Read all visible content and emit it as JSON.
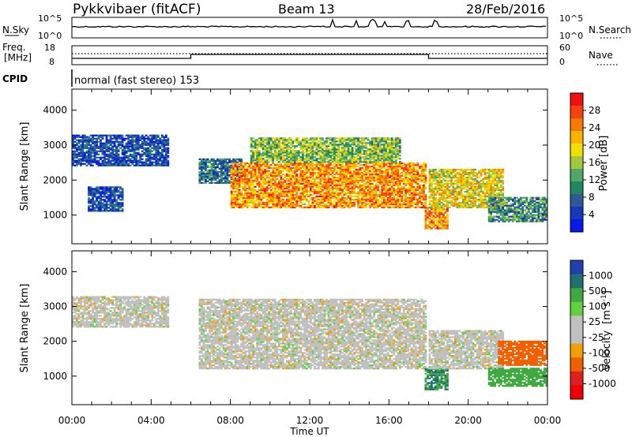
{
  "header": {
    "station": "Pykkvibaer (fitACF)",
    "beam": "Beam 13",
    "date": "28/Feb/2016"
  },
  "nsky_panel": {
    "left_label": "N.Sky",
    "left_ticks": [
      "10^5",
      "10^0"
    ],
    "right_label": "N.Search",
    "right_ticks": [
      "10^5",
      "10^0"
    ]
  },
  "freq_panel": {
    "label_line1": "Freq.",
    "label_line2": "[MHz]",
    "left_ticks": [
      "18",
      "8"
    ],
    "right_label": "Nave",
    "right_ticks": [
      "60",
      "0"
    ]
  },
  "cpid": {
    "label": "CPID",
    "mode_text": "normal (fast stereo) 153"
  },
  "time_axis": {
    "ticks": [
      "00:00",
      "04:00",
      "08:00",
      "12:00",
      "16:00",
      "20:00",
      "00:00"
    ],
    "label": "Time UT"
  },
  "power_colorbar": {
    "label": "Power [dB]",
    "ticks": [
      "28",
      "24",
      "20",
      "16",
      "12",
      "8",
      "4"
    ],
    "colors": [
      "#f01010",
      "#f84010",
      "#f87a00",
      "#f8b400",
      "#f0e000",
      "#a0c840",
      "#50a868",
      "#208860",
      "#305898",
      "#1838b8",
      "#0818e8"
    ]
  },
  "velocity_colorbar": {
    "label_main": "Velocity",
    "label_unit": "[m s",
    "label_exp": "-1",
    "label_close": "]",
    "ticks": [
      "1000",
      "500",
      "100",
      "25",
      "-25",
      "-100",
      "-500",
      "-1000"
    ],
    "colors": [
      "#2040b0",
      "#207070",
      "#40a840",
      "#60d040",
      "#c0c0c0",
      "#c0c0c0",
      "#f0a000",
      "#f06000",
      "#e02020",
      "#f00000"
    ]
  },
  "chart_data": [
    {
      "type": "heatmap",
      "title": "Power",
      "xlabel": "Time UT",
      "ylabel": "Slant Range [km]",
      "xlim": [
        "00:00",
        "24:00"
      ],
      "ylim": [
        180,
        4600
      ],
      "yticks": [
        1000,
        2000,
        3000,
        4000
      ],
      "colorbar": {
        "label": "Power [dB]",
        "range": [
          0,
          30
        ]
      },
      "regions": [
        {
          "t_start": 0.0,
          "t_end": 4.8,
          "range_start": 2400,
          "range_end": 3300,
          "value": 5
        },
        {
          "t_start": 0.8,
          "t_end": 2.6,
          "range_start": 1100,
          "range_end": 1800,
          "value": 5
        },
        {
          "t_start": 6.4,
          "t_end": 8.5,
          "range_start": 1900,
          "range_end": 2600,
          "value": 8
        },
        {
          "t_start": 8.0,
          "t_end": 17.8,
          "range_start": 1200,
          "range_end": 2500,
          "value": 22
        },
        {
          "t_start": 9.0,
          "t_end": 16.5,
          "range_start": 2500,
          "range_end": 3200,
          "value": 14
        },
        {
          "t_start": 17.8,
          "t_end": 19.0,
          "range_start": 600,
          "range_end": 1200,
          "value": 22
        },
        {
          "t_start": 18.0,
          "t_end": 21.8,
          "range_start": 1200,
          "range_end": 2300,
          "value": 18
        },
        {
          "t_start": 21.0,
          "t_end": 24.0,
          "range_start": 800,
          "range_end": 1500,
          "value": 10
        }
      ]
    },
    {
      "type": "heatmap",
      "title": "Velocity",
      "xlabel": "Time UT",
      "ylabel": "Slant Range [km]",
      "xlim": [
        "00:00",
        "24:00"
      ],
      "ylim": [
        180,
        4600
      ],
      "yticks": [
        1000,
        2000,
        3000,
        4000
      ],
      "colorbar": {
        "label": "Velocity [m s-1]",
        "range": [
          -1000,
          1000
        ]
      },
      "regions": [
        {
          "t_start": 0.0,
          "t_end": 4.8,
          "range_start": 2400,
          "range_end": 3300,
          "value": 0
        },
        {
          "t_start": 6.4,
          "t_end": 17.8,
          "range_start": 1200,
          "range_end": 3200,
          "value": 0
        },
        {
          "t_start": 17.8,
          "t_end": 19.0,
          "range_start": 600,
          "range_end": 1200,
          "value": 300
        },
        {
          "t_start": 18.0,
          "t_end": 21.8,
          "range_start": 1200,
          "range_end": 2300,
          "value": 0
        },
        {
          "t_start": 21.5,
          "t_end": 24.0,
          "range_start": 1300,
          "range_end": 2000,
          "value": -300
        },
        {
          "t_start": 21.0,
          "t_end": 24.0,
          "range_start": 700,
          "range_end": 1200,
          "value": 150
        }
      ]
    }
  ]
}
